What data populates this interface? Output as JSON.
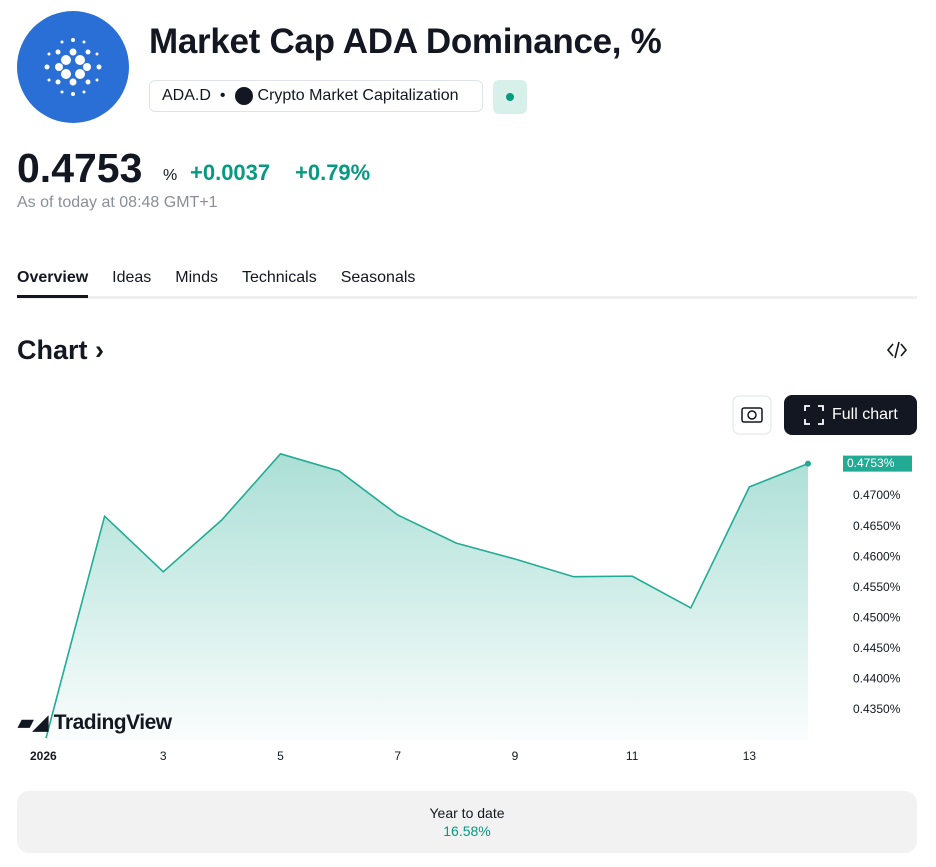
{
  "header": {
    "title": "Market Cap ADA Dominance, %",
    "symbol": "ADA.D",
    "source": "Crypto Market Capitalization"
  },
  "quote": {
    "price": "0.4753",
    "unit": "%",
    "change": "+0.0037",
    "change_percent": "+0.79%",
    "as_of": "As of today at 08:48 GMT+1"
  },
  "tabs": [
    "Overview",
    "Ideas",
    "Minds",
    "Technicals",
    "Seasonals"
  ],
  "section": {
    "title": "Chart",
    "button": "Full chart",
    "watermark": "TradingView"
  },
  "summary": {
    "label": "Year to date",
    "value": "16.58%"
  },
  "chart_data": {
    "type": "area",
    "color": "#22ab94",
    "categories": [
      "2026",
      null,
      "3",
      null,
      "5",
      null,
      "7",
      null,
      "9",
      null,
      "11",
      null,
      "13",
      null
    ],
    "values": [
      0.4304,
      0.4667,
      0.4576,
      0.4661,
      0.4769,
      0.4741,
      0.4669,
      0.4623,
      0.4597,
      0.4568,
      0.4569,
      0.4517,
      0.4715,
      0.4753
    ],
    "value_labels": [
      null,
      null,
      null,
      null,
      null,
      null,
      null,
      null,
      null,
      null,
      null,
      null,
      null,
      "0.4753%"
    ],
    "ylim": [
      0.43,
      0.479
    ],
    "yticks": [
      {
        "value": 0.435,
        "label": "0.4350%"
      },
      {
        "value": 0.44,
        "label": "0.4400%"
      },
      {
        "value": 0.445,
        "label": "0.4450%"
      },
      {
        "value": 0.45,
        "label": "0.4500%"
      },
      {
        "value": 0.455,
        "label": "0.4550%"
      },
      {
        "value": 0.46,
        "label": "0.4600%"
      },
      {
        "value": 0.465,
        "label": "0.4650%"
      },
      {
        "value": 0.47,
        "label": "0.4700%"
      }
    ],
    "grid": false
  }
}
